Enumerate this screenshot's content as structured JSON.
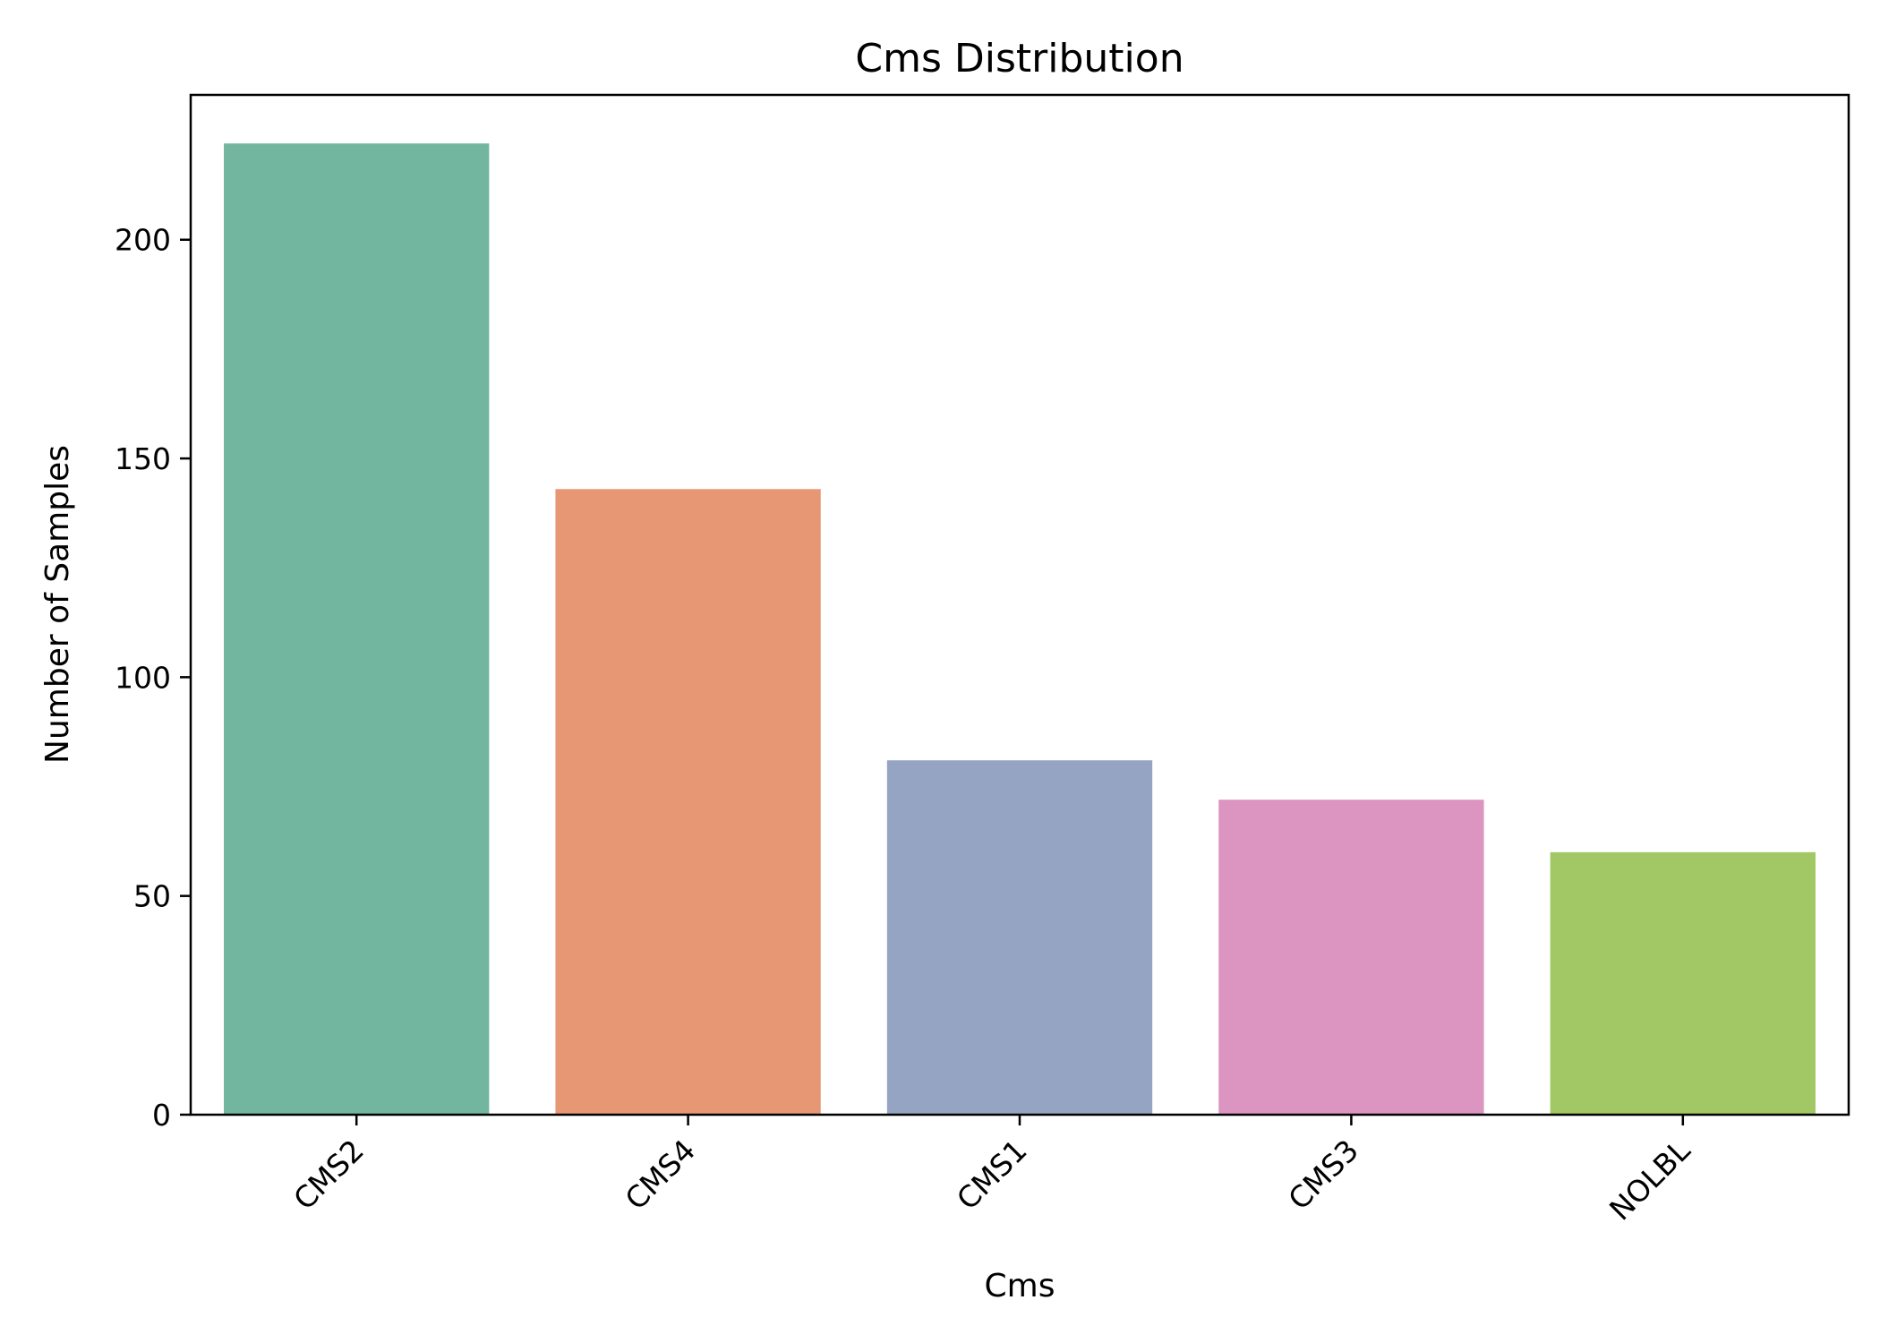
{
  "chart_data": {
    "type": "bar",
    "title": "Cms Distribution",
    "xlabel": "Cms",
    "ylabel": "Number of Samples",
    "categories": [
      "CMS2",
      "CMS4",
      "CMS1",
      "CMS3",
      "NOLBL"
    ],
    "values": [
      222,
      143,
      81,
      72,
      60
    ],
    "colors": [
      "#73b69f",
      "#e89775",
      "#95a4c3",
      "#dc95c0",
      "#a1c864"
    ],
    "ylim": [
      0,
      233.1
    ],
    "yticks": [
      0,
      50,
      100,
      150,
      200
    ],
    "grid": false,
    "legend": "none"
  }
}
